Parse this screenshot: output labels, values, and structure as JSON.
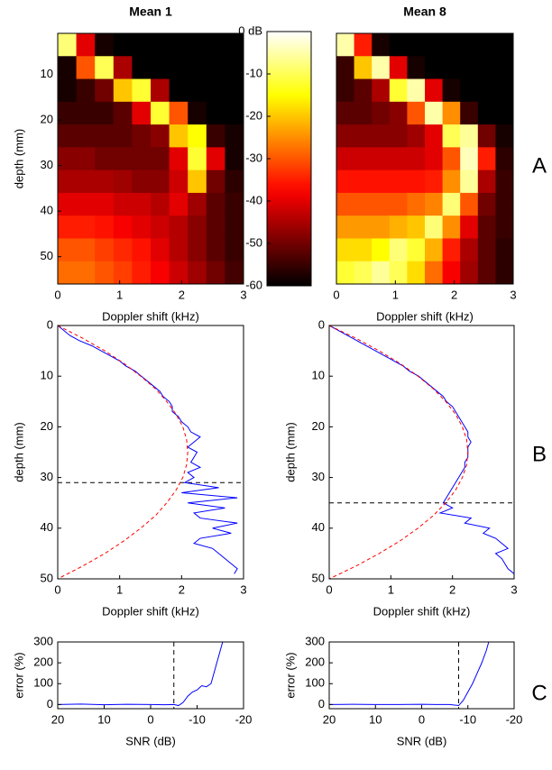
{
  "panel_labels": [
    "A",
    "B",
    "C"
  ],
  "chart_data": [
    {
      "type": "heatmap",
      "title": "Mean 1",
      "x_label": "Doppler shift (kHz)",
      "y_label": "depth (mm)",
      "colormap": "hot",
      "clim": [
        -60,
        0
      ],
      "xlim": [
        0,
        3
      ],
      "ylim": [
        1,
        56
      ],
      "y_inverted": true,
      "xticks": [
        0,
        1,
        2,
        3
      ],
      "yticks": [
        10,
        20,
        30,
        40,
        50
      ],
      "x": [
        0.15,
        0.45,
        0.75,
        1.05,
        1.35,
        1.65,
        1.95,
        2.25,
        2.55,
        2.85
      ],
      "y": [
        3.5,
        8.5,
        13.5,
        18.5,
        23.5,
        28.5,
        33.5,
        38.5,
        43.5,
        48.5,
        53.5
      ],
      "values": [
        [
          -8,
          -40,
          -58,
          -60,
          -60,
          -60,
          -60,
          -60,
          -60,
          -60
        ],
        [
          -58,
          -30,
          -10,
          -45,
          -60,
          -60,
          -60,
          -60,
          -60,
          -60
        ],
        [
          -58,
          -55,
          -50,
          -20,
          -12,
          -45,
          -60,
          -60,
          -60,
          -60
        ],
        [
          -55,
          -55,
          -55,
          -52,
          -40,
          -12,
          -30,
          -58,
          -60,
          -60
        ],
        [
          -52,
          -52,
          -52,
          -52,
          -50,
          -48,
          -20,
          -15,
          -55,
          -58
        ],
        [
          -48,
          -48,
          -50,
          -50,
          -50,
          -50,
          -40,
          -12,
          -40,
          -58
        ],
        [
          -45,
          -45,
          -45,
          -46,
          -48,
          -48,
          -42,
          -20,
          -50,
          -56
        ],
        [
          -40,
          -40,
          -40,
          -42,
          -42,
          -44,
          -40,
          -46,
          -52,
          -55
        ],
        [
          -35,
          -35,
          -36,
          -38,
          -40,
          -42,
          -44,
          -48,
          -52,
          -55
        ],
        [
          -30,
          -30,
          -32,
          -34,
          -36,
          -40,
          -44,
          -48,
          -52,
          -55
        ],
        [
          -28,
          -28,
          -30,
          -32,
          -35,
          -38,
          -42,
          -46,
          -50,
          -54
        ]
      ]
    },
    {
      "type": "heatmap",
      "title": "Mean 8",
      "x_label": "Doppler shift (kHz)",
      "colormap": "hot",
      "clim": [
        -60,
        0
      ],
      "xlim": [
        0,
        3
      ],
      "ylim": [
        1,
        56
      ],
      "y_inverted": true,
      "xticks": [
        0,
        1,
        2,
        3
      ],
      "x": [
        0.15,
        0.45,
        0.75,
        1.05,
        1.35,
        1.65,
        1.95,
        2.25,
        2.55,
        2.85
      ],
      "y": [
        3.5,
        8.5,
        13.5,
        18.5,
        23.5,
        28.5,
        33.5,
        38.5,
        43.5,
        48.5,
        53.5
      ],
      "values": [
        [
          -5,
          -35,
          -58,
          -60,
          -60,
          -60,
          -60,
          -60,
          -60,
          -60
        ],
        [
          -55,
          -20,
          -5,
          -40,
          -58,
          -60,
          -60,
          -60,
          -60,
          -60
        ],
        [
          -55,
          -52,
          -45,
          -12,
          -5,
          -40,
          -58,
          -60,
          -60,
          -60
        ],
        [
          -52,
          -52,
          -50,
          -48,
          -30,
          -5,
          -25,
          -55,
          -60,
          -60
        ],
        [
          -48,
          -48,
          -48,
          -48,
          -46,
          -40,
          -10,
          -6,
          -50,
          -58
        ],
        [
          -42,
          -42,
          -42,
          -42,
          -42,
          -40,
          -30,
          -4,
          -35,
          -56
        ],
        [
          -36,
          -36,
          -36,
          -36,
          -36,
          -35,
          -25,
          -6,
          -45,
          -55
        ],
        [
          -30,
          -30,
          -30,
          -30,
          -28,
          -26,
          -8,
          -30,
          -50,
          -55
        ],
        [
          -24,
          -24,
          -24,
          -22,
          -20,
          -8,
          -25,
          -40,
          -52,
          -55
        ],
        [
          -18,
          -18,
          -15,
          -8,
          -12,
          -22,
          -35,
          -45,
          -52,
          -56
        ],
        [
          -12,
          -10,
          -6,
          -10,
          -18,
          -28,
          -38,
          -46,
          -52,
          -56
        ]
      ]
    },
    {
      "type": "colorbar",
      "colormap": "hot",
      "ylim": [
        -60,
        0
      ],
      "yticks": [
        {
          "value": 0,
          "label": "0 dB"
        },
        -10,
        -20,
        -30,
        -40,
        -50,
        -60
      ]
    },
    {
      "type": "line",
      "x_label": "Doppler shift (kHz)",
      "y_label": "depth (mm)",
      "xlim": [
        0,
        3
      ],
      "ylim": [
        0,
        50
      ],
      "y_inverted": true,
      "xticks": [
        0,
        1,
        2,
        3
      ],
      "yticks": [
        0,
        10,
        20,
        30,
        40,
        50
      ],
      "hline": 31,
      "series": [
        {
          "color": "#0000ff",
          "dashed": false,
          "x": [
            0,
            0.1,
            0.2,
            0.35,
            0.55,
            0.7,
            0.85,
            1.0,
            1.1,
            1.25,
            1.35,
            1.45,
            1.55,
            1.65,
            1.7,
            1.8,
            1.85,
            1.85,
            1.95,
            2.0,
            2.1,
            2.15,
            2.3,
            2.2,
            2.1,
            2.25,
            2.2,
            2.15,
            2.3,
            2.1,
            2.2,
            2.05,
            2.6,
            2.0,
            2.9,
            2.1,
            2.7,
            2.2,
            2.3,
            2.9,
            2.5,
            2.8,
            2.3,
            2.2,
            2.5,
            2.6,
            2.7,
            2.8,
            2.9,
            2.85
          ],
          "y": [
            0,
            1,
            2,
            3,
            4,
            5,
            6,
            7,
            8,
            9,
            10,
            11,
            12,
            13,
            14,
            15,
            16,
            17,
            18,
            19,
            20,
            21,
            22,
            23,
            24,
            25,
            26,
            27,
            28,
            29,
            30,
            31,
            32,
            33,
            34,
            35,
            36,
            37,
            38,
            39,
            40,
            41,
            42,
            43,
            44,
            45,
            46,
            47,
            48,
            49
          ]
        },
        {
          "color": "#ff0000",
          "dashed": true,
          "x": [
            0,
            0.4,
            0.76,
            1.07,
            1.34,
            1.58,
            1.76,
            1.91,
            2.02,
            2.08,
            2.1,
            2.08,
            2.02,
            1.91,
            1.76,
            1.58,
            1.34,
            1.07,
            0.76,
            0.4,
            0
          ],
          "y": [
            0,
            2.5,
            5,
            7.5,
            10,
            12.5,
            15,
            17.5,
            20,
            22.5,
            25,
            27.5,
            30,
            32.5,
            35,
            37.5,
            40,
            42.5,
            45,
            47.5,
            50
          ]
        }
      ]
    },
    {
      "type": "line",
      "x_label": "Doppler shift (kHz)",
      "y_label": "depth (mm)",
      "xlim": [
        0,
        3
      ],
      "ylim": [
        0,
        50
      ],
      "y_inverted": true,
      "xticks": [
        0,
        1,
        2,
        3
      ],
      "yticks": [
        0,
        10,
        20,
        30,
        40,
        50
      ],
      "hline": 35,
      "series": [
        {
          "color": "#0000ff",
          "dashed": false,
          "x": [
            0,
            0.15,
            0.3,
            0.45,
            0.6,
            0.75,
            0.9,
            1.05,
            1.2,
            1.3,
            1.45,
            1.55,
            1.65,
            1.75,
            1.85,
            1.9,
            2.0,
            2.05,
            2.1,
            2.15,
            2.2,
            2.25,
            2.25,
            2.3,
            2.25,
            2.25,
            2.25,
            2.2,
            2.2,
            2.15,
            2.1,
            2.05,
            2.0,
            1.95,
            1.9,
            1.85,
            2.0,
            1.8,
            2.3,
            2.2,
            2.6,
            2.5,
            2.7,
            2.8,
            2.9,
            2.7,
            2.8,
            2.85,
            2.9,
            3.0
          ],
          "y": [
            0,
            1,
            2,
            3,
            4,
            5,
            6,
            7,
            8,
            9,
            10,
            11,
            12,
            13,
            14,
            15,
            16,
            17,
            18,
            19,
            20,
            21,
            22,
            23,
            24,
            25,
            26,
            27,
            28,
            29,
            30,
            31,
            32,
            33,
            34,
            35,
            36,
            37,
            38,
            39,
            40,
            41,
            42,
            43,
            44,
            45,
            46,
            47,
            48,
            49
          ]
        },
        {
          "color": "#ff0000",
          "dashed": true,
          "x": [
            0,
            0.43,
            0.81,
            1.15,
            1.44,
            1.69,
            1.89,
            2.05,
            2.16,
            2.23,
            2.25,
            2.23,
            2.16,
            2.05,
            1.89,
            1.69,
            1.44,
            1.15,
            0.81,
            0.43,
            0
          ],
          "y": [
            0,
            2.5,
            5,
            7.5,
            10,
            12.5,
            15,
            17.5,
            20,
            22.5,
            25,
            27.5,
            30,
            32.5,
            35,
            37.5,
            40,
            42.5,
            45,
            47.5,
            50
          ]
        }
      ]
    },
    {
      "type": "line",
      "x_label": "SNR (dB)",
      "y_label": "error (%)",
      "xlim": [
        20,
        -20
      ],
      "ylim": [
        -20,
        300
      ],
      "xticks": [
        20,
        10,
        0,
        -10,
        -20
      ],
      "yticks": [
        0,
        100,
        200,
        300
      ],
      "vline": -5,
      "series": [
        {
          "color": "#0000ff",
          "dashed": false,
          "x": [
            20,
            15,
            10,
            5,
            0,
            -3,
            -5,
            -6,
            -7,
            -8,
            -9,
            -10,
            -11,
            -12,
            -13,
            -14,
            -15,
            -15.5
          ],
          "y": [
            0,
            2,
            -1,
            1,
            0,
            -1,
            0,
            -5,
            10,
            40,
            60,
            70,
            90,
            85,
            100,
            180,
            260,
            300
          ]
        }
      ]
    },
    {
      "type": "line",
      "x_label": "SNR (dB)",
      "y_label": "error (%)",
      "xlim": [
        20,
        -20
      ],
      "ylim": [
        -20,
        300
      ],
      "xticks": [
        20,
        10,
        0,
        -10,
        -20
      ],
      "yticks": [
        0,
        100,
        200,
        300
      ],
      "vline": -8,
      "series": [
        {
          "color": "#0000ff",
          "dashed": false,
          "x": [
            20,
            15,
            10,
            5,
            0,
            -3,
            -6,
            -8,
            -9,
            -10,
            -11,
            -12,
            -13,
            -14,
            -14.5
          ],
          "y": [
            0,
            1,
            0,
            0,
            1,
            0,
            0,
            -5,
            20,
            60,
            100,
            150,
            200,
            260,
            300
          ]
        }
      ]
    }
  ]
}
